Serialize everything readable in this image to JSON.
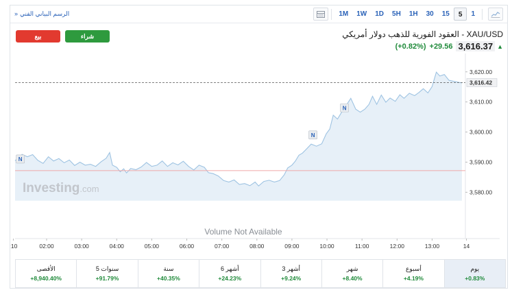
{
  "toolbar": {
    "tech_chart_link": "الرسم البياني الفني",
    "timeframes": [
      "1M",
      "1W",
      "1D",
      "5H",
      "1H",
      "30",
      "15",
      "5",
      "1"
    ],
    "active_timeframe": "5",
    "icons": [
      "table-view-icon",
      "chart-type-icon"
    ]
  },
  "actions": {
    "sell_label": "بيع",
    "buy_label": "شراء"
  },
  "instrument": {
    "title": "XAU/USD - العقود الفورية للذهب دولار أمريكي",
    "price": "3,616.37",
    "change": "+29.56",
    "change_pct": "(+0.82%)"
  },
  "watermark": {
    "brand": "Investing",
    "suffix": ".com"
  },
  "volume_note": "Volume Not Available",
  "chart_data": {
    "type": "area",
    "y_ticks": [
      "3,620.00",
      "3,610.00",
      "3,600.00",
      "3,590.00",
      "3,580.00"
    ],
    "y_range": [
      3576,
      3622
    ],
    "current_price_label": "3,616.42",
    "current_price": 3616.42,
    "reference_line": 3587.2,
    "x_ticks": [
      ":10",
      "02:00",
      "03:00",
      "04:00",
      "05:00",
      "06:00",
      "07:00",
      "08:00",
      "09:00",
      "10:00",
      "11:00",
      "12:00",
      "13:00",
      "14"
    ],
    "x_start_hour": 1.1,
    "x_end_hour": 13.95,
    "news_markers": [
      {
        "label": "N",
        "hour": 1.25,
        "y": 3589
      },
      {
        "label": "N",
        "hour": 9.6,
        "y": 3597
      },
      {
        "label": "N",
        "hour": 10.5,
        "y": 3606
      }
    ],
    "series": [
      {
        "values": [
          [
            1.1,
            3590.5
          ],
          [
            1.2,
            3591.5
          ],
          [
            1.3,
            3592.6
          ],
          [
            1.45,
            3591.8
          ],
          [
            1.6,
            3592.5
          ],
          [
            1.75,
            3590.6
          ],
          [
            1.9,
            3589.6
          ],
          [
            2.05,
            3591.8
          ],
          [
            2.2,
            3590.4
          ],
          [
            2.35,
            3591.2
          ],
          [
            2.5,
            3589.8
          ],
          [
            2.65,
            3590.7
          ],
          [
            2.8,
            3588.9
          ],
          [
            2.95,
            3590.0
          ],
          [
            3.1,
            3589.0
          ],
          [
            3.25,
            3589.3
          ],
          [
            3.4,
            3588.6
          ],
          [
            3.55,
            3590.1
          ],
          [
            3.7,
            3591.3
          ],
          [
            3.8,
            3593.2
          ],
          [
            3.88,
            3589.0
          ],
          [
            4.0,
            3588.3
          ],
          [
            4.1,
            3586.8
          ],
          [
            4.2,
            3587.8
          ],
          [
            4.28,
            3586.4
          ],
          [
            4.4,
            3587.9
          ],
          [
            4.55,
            3587.5
          ],
          [
            4.7,
            3588.4
          ],
          [
            4.85,
            3589.9
          ],
          [
            5.0,
            3588.6
          ],
          [
            5.15,
            3589.0
          ],
          [
            5.3,
            3590.4
          ],
          [
            5.45,
            3588.6
          ],
          [
            5.6,
            3589.8
          ],
          [
            5.75,
            3589.1
          ],
          [
            5.9,
            3590.3
          ],
          [
            6.05,
            3588.6
          ],
          [
            6.2,
            3587.4
          ],
          [
            6.35,
            3589.0
          ],
          [
            6.5,
            3588.3
          ],
          [
            6.62,
            3586.5
          ],
          [
            6.75,
            3586.2
          ],
          [
            6.9,
            3585.4
          ],
          [
            7.05,
            3583.9
          ],
          [
            7.2,
            3583.4
          ],
          [
            7.35,
            3584.1
          ],
          [
            7.5,
            3582.6
          ],
          [
            7.65,
            3582.9
          ],
          [
            7.8,
            3582.2
          ],
          [
            7.95,
            3583.4
          ],
          [
            8.05,
            3582.1
          ],
          [
            8.2,
            3583.6
          ],
          [
            8.35,
            3584.0
          ],
          [
            8.5,
            3583.4
          ],
          [
            8.65,
            3583.9
          ],
          [
            8.78,
            3585.8
          ],
          [
            8.88,
            3588.1
          ],
          [
            9.0,
            3589.0
          ],
          [
            9.1,
            3590.4
          ],
          [
            9.2,
            3592.3
          ],
          [
            9.3,
            3593.0
          ],
          [
            9.4,
            3594.2
          ],
          [
            9.55,
            3596.0
          ],
          [
            9.7,
            3595.3
          ],
          [
            9.85,
            3596.1
          ],
          [
            9.98,
            3599.4
          ],
          [
            10.08,
            3601.0
          ],
          [
            10.18,
            3605.6
          ],
          [
            10.3,
            3604.3
          ],
          [
            10.42,
            3606.6
          ],
          [
            10.55,
            3608.9
          ],
          [
            10.68,
            3611.2
          ],
          [
            10.82,
            3607.6
          ],
          [
            10.95,
            3606.6
          ],
          [
            11.08,
            3607.6
          ],
          [
            11.2,
            3609.2
          ],
          [
            11.3,
            3611.9
          ],
          [
            11.42,
            3609.2
          ],
          [
            11.55,
            3612.3
          ],
          [
            11.68,
            3609.9
          ],
          [
            11.8,
            3611.3
          ],
          [
            11.95,
            3610.2
          ],
          [
            12.08,
            3612.4
          ],
          [
            12.2,
            3611.2
          ],
          [
            12.35,
            3612.9
          ],
          [
            12.5,
            3612.1
          ],
          [
            12.62,
            3613.1
          ],
          [
            12.75,
            3614.4
          ],
          [
            12.88,
            3613.0
          ],
          [
            13.0,
            3615.1
          ],
          [
            13.12,
            3619.9
          ],
          [
            13.22,
            3618.6
          ],
          [
            13.35,
            3619.1
          ],
          [
            13.48,
            3617.2
          ],
          [
            13.6,
            3616.9
          ],
          [
            13.72,
            3616.6
          ],
          [
            13.85,
            3616.3
          ]
        ]
      }
    ]
  },
  "performance": [
    {
      "label": "الأقصى",
      "value": "+8,940.40%"
    },
    {
      "label": "5 سنوات",
      "value": "+91.79%"
    },
    {
      "label": "سنة",
      "value": "+40.35%"
    },
    {
      "label": "6 أشهر",
      "value": "+24.23%"
    },
    {
      "label": "3 أشهر",
      "value": "+9.24%"
    },
    {
      "label": "شهر",
      "value": "+8.40%"
    },
    {
      "label": "أسبوع",
      "value": "+4.19%"
    },
    {
      "label": "يوم",
      "value": "+0.83%",
      "active": true
    }
  ],
  "colors": {
    "line": "#9ec3e2",
    "area": "#e7f0f8",
    "accent": "#2a62b8",
    "positive": "#1f8a3a",
    "sell": "#e23a2f",
    "buy": "#2e9a3e",
    "reference": "#f0a8a8"
  }
}
